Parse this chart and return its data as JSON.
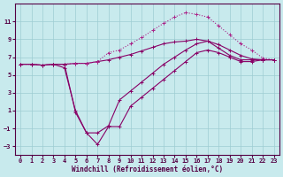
{
  "xlabel": "Windchill (Refroidissement éolien,°C)",
  "xlim": [
    -0.5,
    23.5
  ],
  "ylim": [
    -4,
    13
  ],
  "yticks": [
    -3,
    -1,
    1,
    3,
    5,
    7,
    9,
    11
  ],
  "xticks": [
    0,
    1,
    2,
    3,
    4,
    5,
    6,
    7,
    8,
    9,
    10,
    11,
    12,
    13,
    14,
    15,
    16,
    17,
    18,
    19,
    20,
    21,
    22,
    23
  ],
  "bg_color": "#c8eaed",
  "grid_color": "#9ecdd2",
  "line_color_dark": "#880066",
  "line_color_med": "#aa2288",
  "line1_x": [
    0,
    1,
    2,
    3,
    4,
    5,
    6,
    7,
    8,
    9,
    10,
    11,
    12,
    13,
    14,
    15,
    16,
    17,
    18,
    19,
    20,
    21,
    22,
    23
  ],
  "line1_y": [
    6.2,
    6.2,
    6.1,
    6.2,
    6.2,
    6.3,
    6.3,
    6.5,
    6.7,
    7.0,
    7.3,
    7.7,
    8.1,
    8.5,
    8.7,
    8.8,
    9.0,
    8.8,
    8.4,
    7.8,
    7.2,
    6.8,
    6.7,
    6.7
  ],
  "line2_x": [
    0,
    1,
    2,
    3,
    4,
    5,
    6,
    7,
    8,
    9,
    10,
    11,
    12,
    13,
    14,
    15,
    16,
    17,
    18,
    19,
    20,
    21,
    22,
    23
  ],
  "line2_y": [
    6.2,
    6.2,
    6.1,
    6.2,
    6.2,
    6.3,
    6.3,
    6.5,
    7.5,
    7.8,
    8.5,
    9.2,
    10.0,
    10.8,
    11.5,
    12.0,
    11.8,
    11.5,
    10.5,
    9.5,
    8.5,
    7.8,
    6.9,
    6.7
  ],
  "line3_x": [
    0,
    1,
    2,
    3,
    4,
    5,
    6,
    7,
    8,
    9,
    10,
    11,
    12,
    13,
    14,
    15,
    16,
    17,
    18,
    19,
    20,
    21,
    22,
    23
  ],
  "line3_y": [
    6.2,
    6.2,
    6.1,
    6.2,
    6.2,
    0.8,
    -1.5,
    -1.5,
    -0.7,
    2.2,
    3.2,
    4.2,
    5.2,
    6.2,
    7.0,
    7.8,
    8.5,
    8.8,
    8.0,
    7.2,
    6.7,
    6.7,
    6.7,
    6.7
  ],
  "line4_x": [
    3,
    4,
    5,
    6,
    7,
    8,
    9,
    10,
    11,
    12,
    13,
    14,
    15,
    16,
    17,
    18,
    19,
    20,
    21,
    22,
    23
  ],
  "line4_y": [
    6.2,
    5.8,
    1.0,
    -1.5,
    -2.8,
    -0.8,
    -0.8,
    1.5,
    2.5,
    3.5,
    4.5,
    5.5,
    6.5,
    7.5,
    7.8,
    7.5,
    7.0,
    6.5,
    6.5,
    6.7,
    6.7
  ]
}
